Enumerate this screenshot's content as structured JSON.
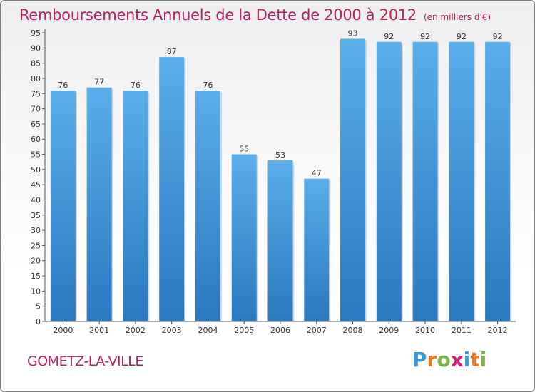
{
  "chart_data": {
    "type": "bar",
    "title": "Remboursements Annuels de la Dette de 2000 à 2012",
    "subtitle": "(en milliers d'€)",
    "categories": [
      "2000",
      "2001",
      "2002",
      "2003",
      "2004",
      "2005",
      "2006",
      "2007",
      "2008",
      "2009",
      "2010",
      "2011",
      "2012"
    ],
    "values": [
      76,
      77,
      76,
      87,
      76,
      55,
      53,
      47,
      93,
      92,
      92,
      92,
      92
    ],
    "ylim": [
      0,
      95
    ],
    "yticks": [
      0,
      5,
      10,
      15,
      20,
      25,
      30,
      35,
      40,
      45,
      50,
      55,
      60,
      65,
      70,
      75,
      80,
      85,
      90,
      95
    ],
    "xlabel": "",
    "ylabel": "",
    "grid": false,
    "bar_color": "#3d8fd6"
  },
  "footer": {
    "commune": "GOMETZ-LA-VILLE",
    "logo_letters": [
      "P",
      "r",
      "o",
      "x",
      "i",
      "t",
      "i"
    ],
    "logo_colors": [
      "#3a9bd5",
      "#e87722",
      "#78b83f",
      "#d81e6d",
      "#3a9bd5",
      "#e87722",
      "#78b83f"
    ]
  }
}
